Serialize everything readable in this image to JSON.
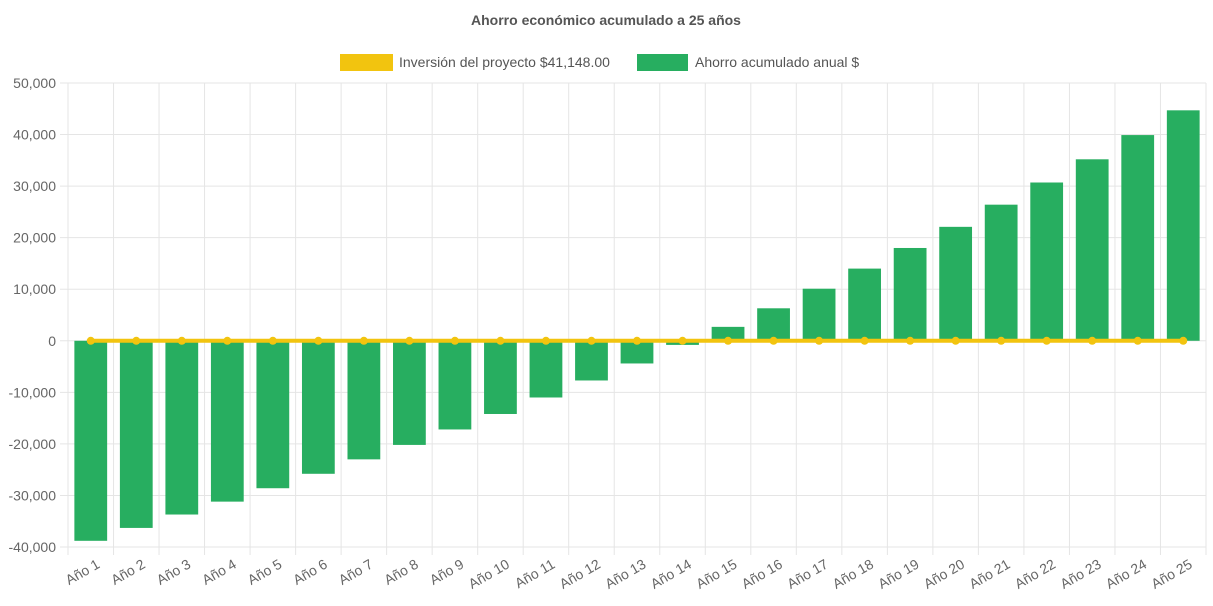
{
  "chart_data": {
    "type": "bar",
    "title": "Ahorro económico acumulado a 25 años",
    "categories": [
      "Año 1",
      "Año 2",
      "Año 3",
      "Año 4",
      "Año 5",
      "Año 6",
      "Año 7",
      "Año 8",
      "Año 9",
      "Año 10",
      "Año 11",
      "Año 12",
      "Año 13",
      "Año 14",
      "Año 15",
      "Año 16",
      "Año 17",
      "Año 18",
      "Año 19",
      "Año 20",
      "Año 21",
      "Año 22",
      "Año 23",
      "Año 24",
      "Año 25"
    ],
    "series": [
      {
        "name": "Inversión del proyecto $41,148.00",
        "kind": "line",
        "color": "#f2c40f",
        "values": [
          0,
          0,
          0,
          0,
          0,
          0,
          0,
          0,
          0,
          0,
          0,
          0,
          0,
          0,
          0,
          0,
          0,
          0,
          0,
          0,
          0,
          0,
          0,
          0,
          0
        ]
      },
      {
        "name": "Ahorro acumulado anual $",
        "kind": "bar",
        "color": "#27ae60",
        "values": [
          -38800,
          -36300,
          -33700,
          -31200,
          -28600,
          -25800,
          -23000,
          -20200,
          -17200,
          -14200,
          -11000,
          -7700,
          -4400,
          -800,
          2700,
          6300,
          10100,
          14000,
          18000,
          22100,
          26400,
          30700,
          35200,
          39900,
          44700
        ]
      }
    ],
    "ylim": [
      -40000,
      50000
    ],
    "yticks": [
      "50,000",
      "40,000",
      "30,000",
      "20,000",
      "10,000",
      "0",
      "-10,000",
      "-20,000",
      "-30,000",
      "-40,000"
    ],
    "grid": true,
    "legend_position": "top"
  }
}
